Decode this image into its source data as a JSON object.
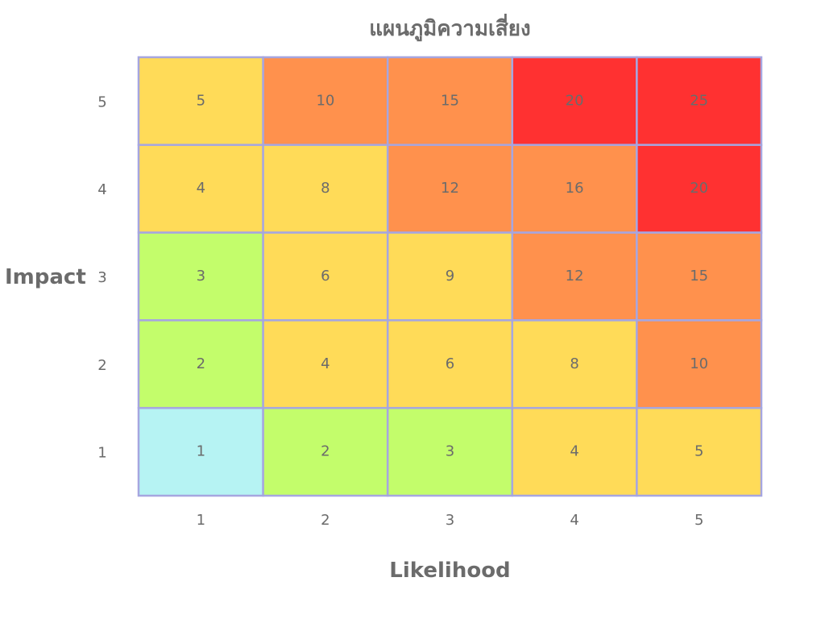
{
  "chart_data": {
    "type": "heatmap",
    "title": "แผนภูมิความเสี่ยง",
    "xlabel": "Likelihood",
    "ylabel": "Impact",
    "x_categories": [
      "1",
      "2",
      "3",
      "4",
      "5"
    ],
    "y_categories": [
      "5",
      "4",
      "3",
      "2",
      "1"
    ],
    "values": [
      [
        5,
        10,
        15,
        20,
        25
      ],
      [
        4,
        8,
        12,
        16,
        20
      ],
      [
        3,
        6,
        9,
        12,
        15
      ],
      [
        2,
        4,
        6,
        8,
        10
      ],
      [
        1,
        2,
        3,
        4,
        5
      ]
    ],
    "colors": {
      "very_low": "#b6f3f3",
      "low": "#c3fd6b",
      "medium": "#ffdb58",
      "high": "#ff914d",
      "extreme": "#ff3131",
      "border": "#a6a6e0",
      "text": "#6b6b6b"
    },
    "grid": true,
    "legend": "none"
  }
}
